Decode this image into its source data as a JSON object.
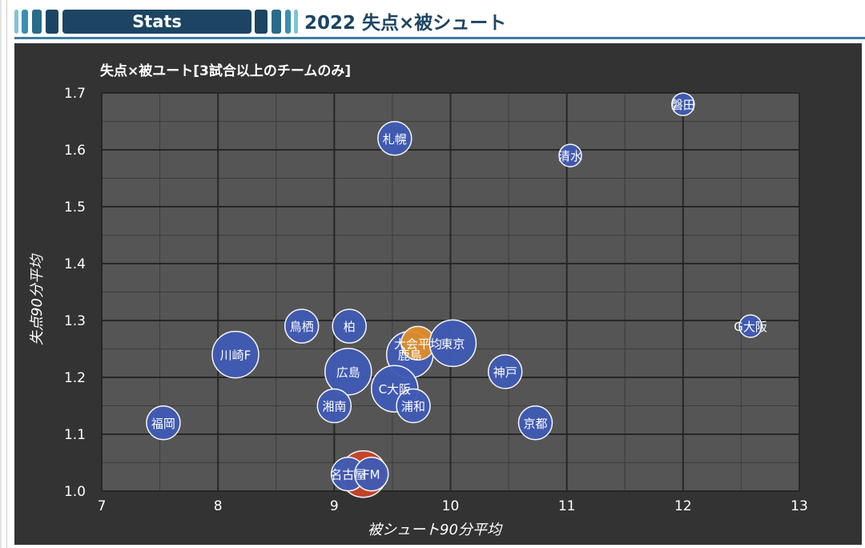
{
  "header": {
    "section_label": "Stats",
    "title": "2022 失点×被シュート"
  },
  "colors": {
    "header_dark": "#1c4563",
    "stripe_light": "#7fc3d6",
    "stripe_mid": "#3b8fae",
    "panel_bg": "#333333",
    "plot_bg": "#555555",
    "team_point": "#3f5bb5",
    "average_point": "#e08e2b",
    "highlight_point": "#c8452a"
  },
  "chart_data": {
    "type": "scatter",
    "title": "失点×被ユート[3試合以上のチームのみ]",
    "xlabel": "被シュート90分平均",
    "ylabel": "失点90分平均",
    "xlim": [
      7,
      13
    ],
    "ylim": [
      1.0,
      1.7
    ],
    "x_ticks": [
      7,
      8,
      9,
      10,
      11,
      12,
      13
    ],
    "y_ticks": [
      1.0,
      1.1,
      1.2,
      1.3,
      1.4,
      1.5,
      1.6,
      1.7
    ],
    "x_minor_step": 0.5,
    "y_minor_step": 0.05,
    "grid": true,
    "points": [
      {
        "label": "磐田",
        "x": 12.0,
        "y": 1.68,
        "size": "small",
        "kind": "team"
      },
      {
        "label": "札幌",
        "x": 9.52,
        "y": 1.62,
        "size": "medium",
        "kind": "team"
      },
      {
        "label": "清水",
        "x": 11.03,
        "y": 1.59,
        "size": "small",
        "kind": "team"
      },
      {
        "label": "G大阪",
        "x": 12.58,
        "y": 1.29,
        "size": "small",
        "kind": "team"
      },
      {
        "label": "鳥栖",
        "x": 8.72,
        "y": 1.29,
        "size": "medium",
        "kind": "team"
      },
      {
        "label": "柏",
        "x": 9.13,
        "y": 1.29,
        "size": "medium",
        "kind": "team"
      },
      {
        "label": "川崎F",
        "x": 8.15,
        "y": 1.24,
        "size": "large",
        "kind": "team"
      },
      {
        "label": "鹿島",
        "x": 9.65,
        "y": 1.24,
        "size": "large",
        "kind": "team"
      },
      {
        "label": "大会平均",
        "x": 9.72,
        "y": 1.26,
        "size": "medium",
        "kind": "average"
      },
      {
        "label": "東京",
        "x": 10.02,
        "y": 1.26,
        "size": "large",
        "kind": "team"
      },
      {
        "label": "広島",
        "x": 9.12,
        "y": 1.21,
        "size": "large",
        "kind": "team"
      },
      {
        "label": "神戸",
        "x": 10.47,
        "y": 1.21,
        "size": "medium",
        "kind": "team"
      },
      {
        "label": "C大阪",
        "x": 9.52,
        "y": 1.18,
        "size": "large",
        "kind": "team"
      },
      {
        "label": "湘南",
        "x": 9.0,
        "y": 1.15,
        "size": "medium",
        "kind": "team"
      },
      {
        "label": "浦和",
        "x": 9.68,
        "y": 1.15,
        "size": "medium",
        "kind": "team"
      },
      {
        "label": "福岡",
        "x": 7.53,
        "y": 1.12,
        "size": "medium",
        "kind": "team"
      },
      {
        "label": "京都",
        "x": 10.73,
        "y": 1.12,
        "size": "medium",
        "kind": "team"
      },
      {
        "label": "",
        "x": 9.25,
        "y": 1.03,
        "size": "large",
        "kind": "highlight"
      },
      {
        "label": "名古屋",
        "x": 9.12,
        "y": 1.03,
        "size": "medium",
        "kind": "team"
      },
      {
        "label": "FM",
        "x": 9.32,
        "y": 1.03,
        "size": "medium",
        "kind": "team"
      }
    ]
  }
}
